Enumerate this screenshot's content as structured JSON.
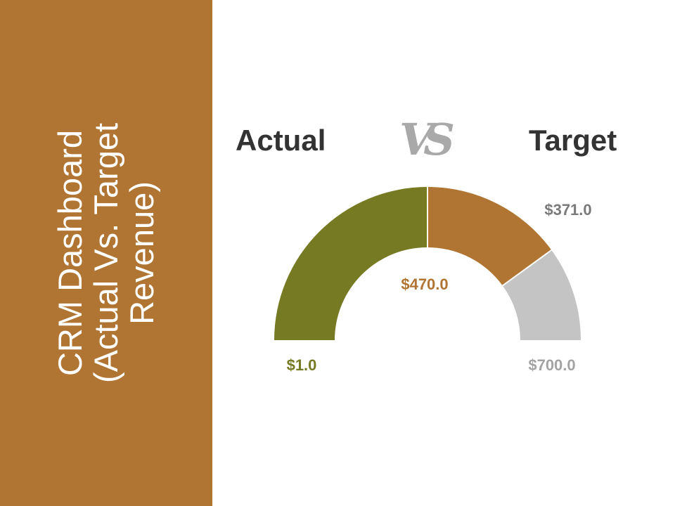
{
  "side_panel": {
    "title_lines": [
      "CRM Dashboard",
      "(Actual Vs. Target",
      "Revenue)"
    ]
  },
  "headings": {
    "actual": "Actual",
    "vs": "VS",
    "target": "Target"
  },
  "chart_data": {
    "type": "gauge",
    "min": 1.0,
    "max": 700.0,
    "actual": 371.0,
    "target": 470.0,
    "segments": [
      {
        "name": "actual",
        "from": 1.0,
        "to": 371.0,
        "color": "#767a22"
      },
      {
        "name": "target",
        "from": 371.0,
        "to": 470.0,
        "color": "#b07532"
      },
      {
        "name": "remaining",
        "from": 470.0,
        "to": 700.0,
        "color": "#c4c4c4"
      }
    ],
    "labels": {
      "min": "$1.0",
      "max": "$700.0",
      "actual": "$371.0",
      "target": "$470.0"
    }
  }
}
